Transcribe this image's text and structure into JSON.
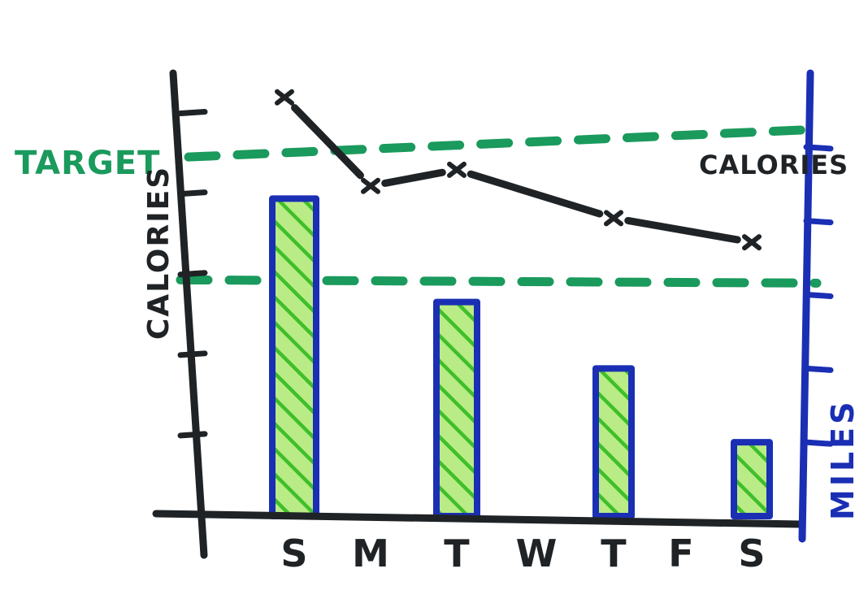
{
  "chart_data": {
    "type": "bar+line",
    "categories": [
      "S",
      "M",
      "T",
      "W",
      "T",
      "F",
      "S"
    ],
    "series": [
      {
        "name": "MILES",
        "kind": "bar",
        "axis": "right",
        "values": [
          4.3,
          null,
          2.9,
          null,
          2.0,
          null,
          1.0
        ]
      },
      {
        "name": "CALORIES",
        "kind": "line",
        "axis": "left",
        "values": [
          5.2,
          4.1,
          4.3,
          null,
          3.7,
          null,
          3.4
        ]
      }
    ],
    "targets": [
      {
        "name": "TARGET",
        "axis": "left",
        "value": 4.6
      },
      {
        "name": "",
        "axis": "right",
        "value": 3.2
      }
    ],
    "ylabel_left": "CALORIES",
    "ylabel_right": "MILES",
    "series_label": "CALORIES",
    "target_label": "TARGET",
    "ylim_left": [
      0,
      5.5
    ],
    "ylim_right": [
      0,
      6
    ],
    "left_ticks": [
      1,
      2,
      3,
      4,
      5
    ],
    "right_ticks": [
      1,
      2,
      3,
      4,
      5
    ]
  },
  "colors": {
    "calories": "#1f2326",
    "miles": "#1a2fb4",
    "target": "#1a9a5c",
    "bar_fill": "#b9ec86",
    "bar_hatch": "#3fbf2a",
    "axis_left": "#1f2326"
  }
}
